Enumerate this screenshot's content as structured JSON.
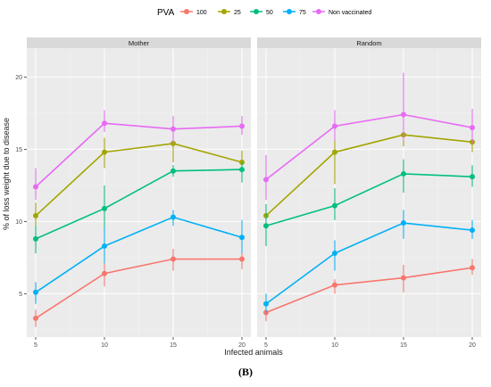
{
  "legend": {
    "title": "PVA",
    "items": [
      {
        "label": "100",
        "color": "#F8766D"
      },
      {
        "label": "25",
        "color": "#A3A500"
      },
      {
        "label": "50",
        "color": "#00BF7D"
      },
      {
        "label": "75",
        "color": "#00B0F6"
      },
      {
        "label": "Non vaccinated",
        "color": "#E76BF3"
      }
    ]
  },
  "caption": "(B)",
  "chart_data": {
    "type": "line",
    "xlabel": "Infected animals",
    "ylabel": "% of loss weight due to disease",
    "x": [
      5,
      10,
      15,
      20
    ],
    "x_ticks": [
      "5",
      "10",
      "15",
      "20"
    ],
    "y_ticks": [
      "5",
      "10",
      "15",
      "20"
    ],
    "ylim": [
      2,
      22
    ],
    "legend_position": "top",
    "grid": true,
    "series_colors": [
      "#F8766D",
      "#A3A500",
      "#00BF7D",
      "#00B0F6",
      "#E76BF3"
    ],
    "panels": [
      {
        "label": "Mother",
        "series": [
          {
            "name": "100",
            "values": [
              3.3,
              6.4,
              7.4,
              7.4
            ],
            "lower": [
              2.7,
              5.5,
              6.6,
              6.7
            ],
            "upper": [
              3.9,
              7.3,
              8.1,
              8.1
            ]
          },
          {
            "name": "25",
            "values": [
              10.4,
              14.8,
              15.4,
              14.1
            ],
            "lower": [
              9.7,
              13.7,
              14.1,
              13.3
            ],
            "upper": [
              11.3,
              15.8,
              16.3,
              14.9
            ]
          },
          {
            "name": "50",
            "values": [
              8.8,
              10.9,
              13.5,
              13.6
            ],
            "lower": [
              7.8,
              9.4,
              13.1,
              12.7
            ],
            "upper": [
              9.7,
              12.5,
              13.9,
              14.1
            ]
          },
          {
            "name": "75",
            "values": [
              5.1,
              8.3,
              10.3,
              8.9
            ],
            "lower": [
              4.3,
              7.1,
              9.7,
              7.8
            ],
            "upper": [
              5.8,
              9.6,
              10.8,
              10.1
            ]
          },
          {
            "name": "Non vaccinated",
            "values": [
              12.4,
              16.8,
              16.4,
              16.6
            ],
            "lower": [
              11.5,
              16.2,
              15.4,
              16.0
            ],
            "upper": [
              13.7,
              17.7,
              17.3,
              17.3
            ]
          }
        ]
      },
      {
        "label": "Random",
        "series": [
          {
            "name": "100",
            "values": [
              3.7,
              5.6,
              6.1,
              6.8
            ],
            "lower": [
              3.1,
              5.0,
              5.1,
              6.3
            ],
            "upper": [
              4.2,
              6.0,
              7.0,
              7.4
            ]
          },
          {
            "name": "25",
            "values": [
              10.4,
              14.8,
              16.0,
              15.5
            ],
            "lower": [
              9.8,
              12.6,
              15.2,
              14.8
            ],
            "upper": [
              11.0,
              16.3,
              17.0,
              15.9
            ]
          },
          {
            "name": "50",
            "values": [
              9.7,
              11.1,
              13.3,
              13.1
            ],
            "lower": [
              8.3,
              10.1,
              12.0,
              12.4
            ],
            "upper": [
              11.2,
              12.3,
              14.3,
              13.9
            ]
          },
          {
            "name": "75",
            "values": [
              4.3,
              7.8,
              9.9,
              9.4
            ],
            "lower": [
              3.7,
              6.6,
              8.8,
              8.8
            ],
            "upper": [
              5.0,
              8.7,
              10.8,
              10.1
            ]
          },
          {
            "name": "Non vaccinated",
            "values": [
              12.9,
              16.6,
              17.4,
              16.5
            ],
            "lower": [
              11.5,
              15.6,
              15.6,
              15.4
            ],
            "upper": [
              14.6,
              17.7,
              20.3,
              17.8
            ]
          }
        ]
      }
    ]
  }
}
